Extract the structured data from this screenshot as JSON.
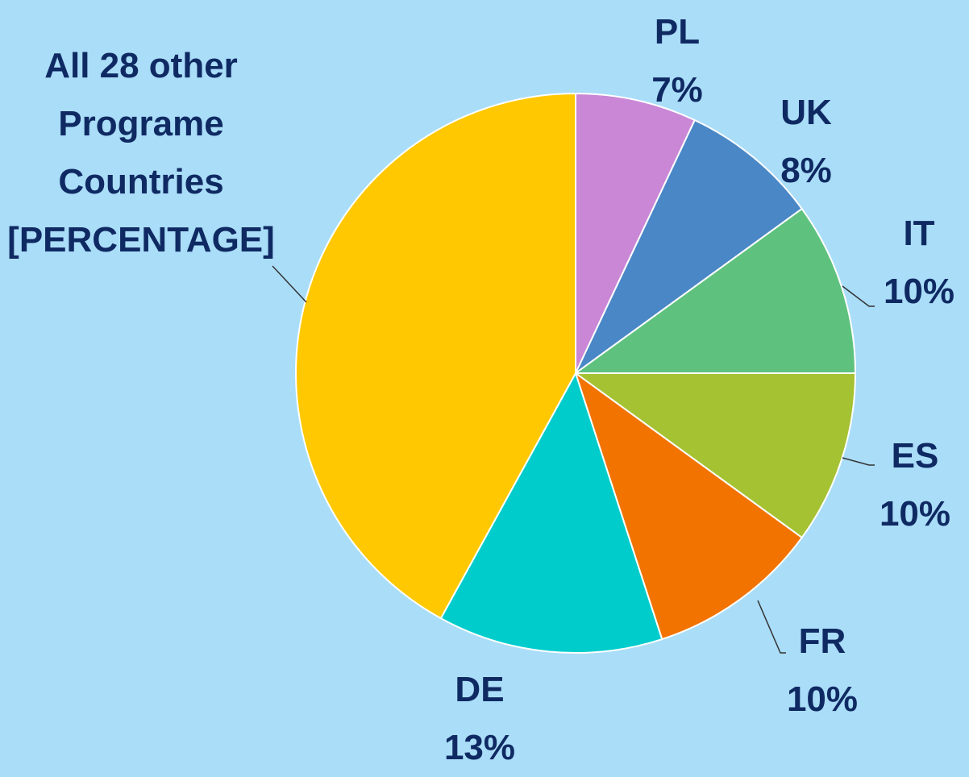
{
  "chart_data": {
    "type": "pie",
    "categories": [
      "PL",
      "UK",
      "IT",
      "ES",
      "FR",
      "DE",
      "All 28 other Programe Countries [PERCENTAGE]"
    ],
    "values": [
      7,
      8,
      10,
      10,
      10,
      13,
      42
    ],
    "value_labels": [
      "7%",
      "8%",
      "10%",
      "10%",
      "10%",
      "13%",
      null
    ],
    "colors": [
      "#c987d6",
      "#4a87c6",
      "#5ec27e",
      "#a4c232",
      "#f27300",
      "#00cccc",
      "#ffc800"
    ]
  }
}
